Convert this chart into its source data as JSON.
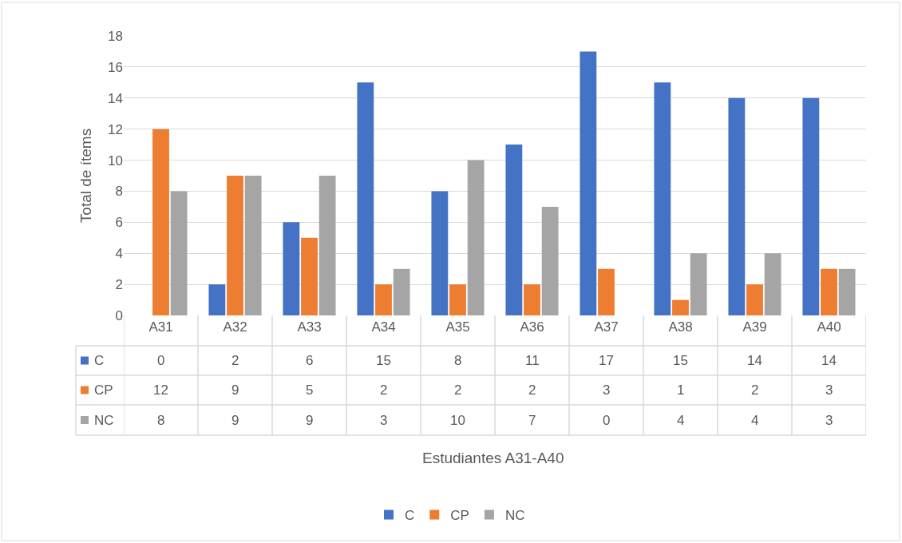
{
  "chart_data": {
    "type": "bar",
    "annotations": [
      "Estudiantes A31-A40"
    ],
    "ylabel": "Total de ítems",
    "categories": [
      "A31",
      "A32",
      "A33",
      "A34",
      "A35",
      "A36",
      "A37",
      "A38",
      "A39",
      "A40"
    ],
    "series": [
      {
        "name": "C",
        "color": "#4472c4",
        "values": [
          0,
          2,
          6,
          15,
          8,
          11,
          17,
          15,
          14,
          14
        ]
      },
      {
        "name": "CP",
        "color": "#ed7d31",
        "values": [
          12,
          9,
          5,
          2,
          2,
          2,
          3,
          1,
          2,
          3
        ]
      },
      {
        "name": "NC",
        "color": "#a5a5a5",
        "values": [
          8,
          9,
          9,
          3,
          10,
          7,
          0,
          4,
          4,
          3
        ]
      }
    ],
    "ylim": [
      0,
      18
    ],
    "yticks": [
      0,
      2,
      4,
      6,
      8,
      10,
      12,
      14,
      16,
      18
    ],
    "grid": "y",
    "legend": "bottom",
    "data_labels": true
  }
}
